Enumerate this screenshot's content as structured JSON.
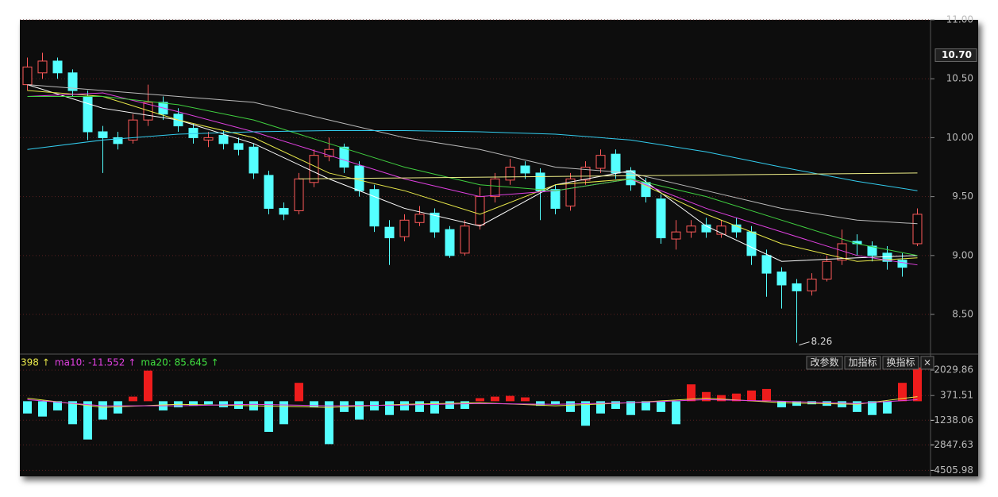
{
  "chart_data": {
    "type": "candlestick",
    "ylim": [
      8.17,
      11.0
    ],
    "yticks": [
      {
        "value": 8.5,
        "label": "8.50"
      },
      {
        "value": 9,
        "label": "9.00"
      },
      {
        "value": 9.5,
        "label": "9.50"
      },
      {
        "value": 10,
        "label": "10.00"
      },
      {
        "value": 10.5,
        "label": "10.50"
      },
      {
        "value": 11,
        "label": "11.00"
      }
    ],
    "grid": true,
    "up_color": "#ff5a5a",
    "down_color": "#54ffff",
    "price_marker": {
      "value": 10.7,
      "label": "10.70"
    },
    "low_label": "8.26",
    "open": [
      10.45,
      10.55,
      10.65,
      10.55,
      10.35,
      10.05,
      10.0,
      9.98,
      10.15,
      10.3,
      10.2,
      10.08,
      9.98,
      10.02,
      9.95,
      9.92,
      9.68,
      9.4,
      9.38,
      9.62,
      9.84,
      9.92,
      9.76,
      9.56,
      9.24,
      9.16,
      9.28,
      9.36,
      9.22,
      9.02,
      9.26,
      9.5,
      9.64,
      9.76,
      9.7,
      9.56,
      9.42,
      9.64,
      9.74,
      9.86,
      9.72,
      9.62,
      9.48,
      9.14,
      9.2,
      9.26,
      9.18,
      9.26,
      9.2,
      9.0,
      8.86,
      8.76,
      8.7,
      8.8,
      8.96,
      9.12,
      9.08,
      9.02,
      8.96,
      9.1
    ],
    "high": [
      10.68,
      10.72,
      10.68,
      10.58,
      10.4,
      10.1,
      10.05,
      10.2,
      10.45,
      10.35,
      10.25,
      10.12,
      10.05,
      10.06,
      10.0,
      9.95,
      9.72,
      9.45,
      9.7,
      9.9,
      10.0,
      9.95,
      9.8,
      9.6,
      9.3,
      9.35,
      9.42,
      9.4,
      9.25,
      9.3,
      9.58,
      9.7,
      9.82,
      9.8,
      9.74,
      9.6,
      9.7,
      9.8,
      9.9,
      9.9,
      9.75,
      9.66,
      9.52,
      9.3,
      9.3,
      9.32,
      9.3,
      9.32,
      9.25,
      9.05,
      8.9,
      8.8,
      8.85,
      9.0,
      9.22,
      9.18,
      9.12,
      9.08,
      9.02,
      9.4
    ],
    "low": [
      10.4,
      10.5,
      10.5,
      10.35,
      9.98,
      9.7,
      9.9,
      9.95,
      10.1,
      10.15,
      10.05,
      9.95,
      9.92,
      9.9,
      9.85,
      9.65,
      9.35,
      9.3,
      9.35,
      9.58,
      9.8,
      9.7,
      9.5,
      9.2,
      8.92,
      9.12,
      9.25,
      9.15,
      8.98,
      9.0,
      9.22,
      9.45,
      9.6,
      9.65,
      9.3,
      9.35,
      9.38,
      9.6,
      9.7,
      9.65,
      9.55,
      9.45,
      9.1,
      9.05,
      9.15,
      9.15,
      9.15,
      9.15,
      8.92,
      8.65,
      8.55,
      8.26,
      8.66,
      8.78,
      8.92,
      9.0,
      8.95,
      8.88,
      8.82,
      9.08
    ],
    "close": [
      10.6,
      10.65,
      10.55,
      10.4,
      10.05,
      10.0,
      9.95,
      10.15,
      10.3,
      10.2,
      10.1,
      10.0,
      10.0,
      9.95,
      9.9,
      9.7,
      9.4,
      9.35,
      9.65,
      9.85,
      9.9,
      9.75,
      9.55,
      9.25,
      9.15,
      9.3,
      9.35,
      9.2,
      9.0,
      9.25,
      9.5,
      9.65,
      9.75,
      9.7,
      9.55,
      9.4,
      9.65,
      9.75,
      9.85,
      9.7,
      9.6,
      9.5,
      9.15,
      9.2,
      9.25,
      9.2,
      9.25,
      9.2,
      9.0,
      8.85,
      8.75,
      8.7,
      8.8,
      8.95,
      9.1,
      9.1,
      9.0,
      8.95,
      8.9,
      9.35
    ],
    "lines": [
      {
        "color": "#ffffff",
        "x": [
          0,
          5,
          10,
          15,
          20,
          25,
          30,
          35,
          40,
          45,
          50,
          55,
          59
        ],
        "values": [
          10.45,
          10.25,
          10.15,
          9.95,
          9.65,
          9.4,
          9.25,
          9.6,
          9.72,
          9.25,
          8.95,
          8.98,
          9.0
        ]
      },
      {
        "color": "#e8e84a",
        "x": [
          0,
          5,
          10,
          15,
          20,
          25,
          30,
          35,
          40,
          45,
          50,
          55,
          59
        ],
        "values": [
          10.4,
          10.35,
          10.15,
          10.0,
          9.7,
          9.55,
          9.35,
          9.6,
          9.65,
          9.35,
          9.1,
          8.95,
          8.98
        ]
      },
      {
        "color": "#e040e0",
        "x": [
          0,
          5,
          10,
          15,
          20,
          25,
          30,
          35,
          40,
          45,
          50,
          55,
          59
        ],
        "values": [
          10.35,
          10.38,
          10.22,
          10.05,
          9.85,
          9.65,
          9.5,
          9.55,
          9.65,
          9.4,
          9.2,
          9.0,
          8.92
        ]
      },
      {
        "color": "#40d040",
        "x": [
          0,
          5,
          10,
          15,
          20,
          25,
          30,
          35,
          40,
          45,
          50,
          55,
          59
        ],
        "values": [
          10.35,
          10.35,
          10.28,
          10.15,
          9.95,
          9.75,
          9.6,
          9.55,
          9.65,
          9.5,
          9.3,
          9.1,
          9.0
        ]
      },
      {
        "color": "#bbbbbb",
        "x": [
          0,
          5,
          10,
          15,
          20,
          25,
          30,
          35,
          40,
          45,
          50,
          55,
          59
        ],
        "values": [
          10.45,
          10.4,
          10.35,
          10.3,
          10.15,
          10.0,
          9.9,
          9.75,
          9.7,
          9.55,
          9.4,
          9.3,
          9.27
        ]
      },
      {
        "color": "#33ccee",
        "x": [
          0,
          5,
          10,
          15,
          20,
          25,
          30,
          35,
          40,
          45,
          50,
          55,
          59
        ],
        "values": [
          9.9,
          9.98,
          10.03,
          10.05,
          10.06,
          10.06,
          10.05,
          10.03,
          9.98,
          9.88,
          9.75,
          9.63,
          9.55
        ]
      },
      {
        "color": "#eeee88",
        "x": [
          18,
          59
        ],
        "values": [
          9.65,
          9.7
        ]
      }
    ],
    "indicator": {
      "legend": [
        "398",
        "ma10: -11.552",
        "ma20: 85.645"
      ],
      "legend_colors": [
        "#e8e84a",
        "#e040e0",
        "#40e040"
      ],
      "buttons": [
        "改参数",
        "加指标",
        "换指标",
        "×"
      ],
      "y2lim": [
        -4904,
        3024
      ],
      "y2ticks": [
        2029.86,
        371.51,
        -1238.06,
        -2847.63,
        -4505.98
      ],
      "values": [
        -800,
        -1000,
        -600,
        -1500,
        -2500,
        -1200,
        -800,
        300,
        2000,
        -600,
        -400,
        -300,
        -200,
        -400,
        -500,
        -600,
        -2000,
        -1500,
        1200,
        -400,
        -2800,
        -700,
        -1200,
        -600,
        -900,
        -600,
        -700,
        -800,
        -500,
        -500,
        200,
        300,
        350,
        250,
        -300,
        -200,
        -700,
        -1600,
        -800,
        -500,
        -900,
        -600,
        -700,
        -1500,
        1100,
        600,
        400,
        500,
        700,
        800,
        -400,
        -300,
        -200,
        -300,
        -400,
        -700,
        -900,
        -800,
        1200,
        2200
      ],
      "lines": [
        {
          "color": "#e8e84a",
          "x": [
            0,
            5,
            10,
            15,
            20,
            25,
            30,
            35,
            40,
            45,
            50,
            55,
            59
          ],
          "values": [
            200,
            -400,
            -200,
            -300,
            -400,
            -200,
            -100,
            -300,
            -100,
            200,
            -100,
            -200,
            300
          ]
        },
        {
          "color": "#e040e0",
          "x": [
            0,
            5,
            10,
            15,
            20,
            25,
            30,
            35,
            40,
            45,
            50,
            55,
            59
          ],
          "values": [
            100,
            -300,
            -300,
            -200,
            -300,
            -250,
            -150,
            -200,
            -100,
            100,
            0,
            -150,
            100
          ]
        }
      ]
    }
  }
}
